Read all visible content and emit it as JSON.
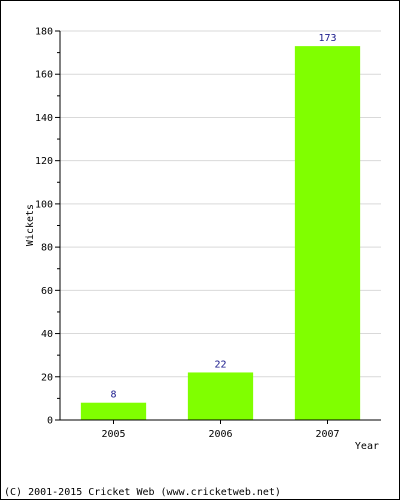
{
  "chart_data": {
    "type": "bar",
    "categories": [
      "2005",
      "2006",
      "2007"
    ],
    "values": [
      8,
      22,
      173
    ],
    "data_labels": [
      "8",
      "22",
      "173"
    ],
    "title": "",
    "xlabel": "Year",
    "ylabel": "Wickets",
    "ylim": [
      0,
      180
    ],
    "yticks": [
      0,
      20,
      40,
      60,
      80,
      100,
      120,
      140,
      160,
      180
    ],
    "grid": true,
    "legend": "none",
    "colors": {
      "bar": "#80ff00",
      "data_label": "#1a1a8c",
      "grid": "#d9d9d9",
      "axis": "#000000"
    }
  },
  "footer": {
    "copyright": "(C) 2001-2015 Cricket Web (www.cricketweb.net)"
  }
}
